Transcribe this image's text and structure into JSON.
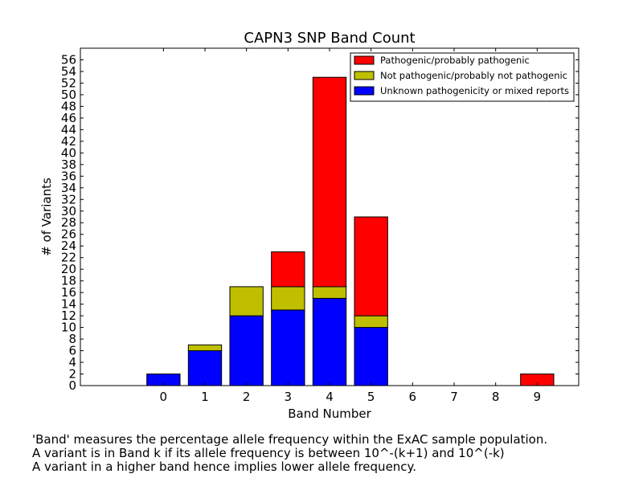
{
  "chart_data": {
    "type": "bar",
    "stacked": true,
    "title": "CAPN3 SNP Band Count",
    "xlabel": "Band Number",
    "ylabel": "# of Variants",
    "categories": [
      "0",
      "1",
      "2",
      "3",
      "4",
      "5",
      "6",
      "7",
      "8",
      "9"
    ],
    "ylim": [
      0,
      58
    ],
    "yticks": [
      0,
      2,
      4,
      6,
      8,
      10,
      12,
      14,
      16,
      18,
      20,
      22,
      24,
      26,
      28,
      30,
      32,
      34,
      36,
      38,
      40,
      42,
      44,
      46,
      48,
      50,
      52,
      54,
      56
    ],
    "xlim": [
      -2,
      10
    ],
    "legend_position": "top-right",
    "grid": false,
    "series": [
      {
        "name": "Unknown pathogenicity or mixed reports",
        "color": "#0000ff",
        "values": [
          2,
          6,
          12,
          13,
          15,
          10,
          0,
          0,
          0,
          0
        ]
      },
      {
        "name": "Not pathogenic/probably not pathogenic",
        "color": "#bfbf00",
        "values": [
          0,
          1,
          5,
          4,
          2,
          2,
          0,
          0,
          0,
          0
        ]
      },
      {
        "name": "Pathogenic/probably pathogenic",
        "color": "#ff0000",
        "values": [
          0,
          0,
          0,
          6,
          36,
          17,
          0,
          0,
          0,
          2
        ]
      }
    ],
    "legend_order": [
      2,
      1,
      0
    ]
  },
  "caption": {
    "line1": "'Band' measures the percentage allele frequency within the ExAC sample population.",
    "line2": "A variant is in Band k if its allele frequency is between 10^-(k+1) and 10^(-k)",
    "line3": "A variant in a higher band hence implies lower allele frequency."
  }
}
